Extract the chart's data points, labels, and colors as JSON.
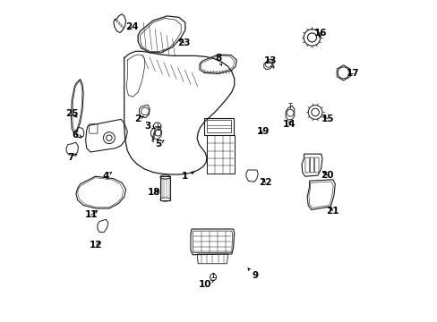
{
  "bg_color": "#ffffff",
  "line_color": "#1a1a1a",
  "label_color": "#000000",
  "font_size": 7.5,
  "arrow_color": "#000000",
  "fig_w": 4.89,
  "fig_h": 3.6,
  "dpi": 100,
  "part_labels": {
    "1": [
      0.395,
      0.548,
      0.43,
      0.53
    ],
    "2": [
      0.248,
      0.368,
      0.272,
      0.358
    ],
    "3": [
      0.278,
      0.39,
      0.308,
      0.4
    ],
    "4": [
      0.148,
      0.548,
      0.172,
      0.53
    ],
    "5": [
      0.31,
      0.448,
      0.33,
      0.435
    ],
    "6": [
      0.052,
      0.418,
      0.075,
      0.425
    ],
    "7": [
      0.038,
      0.488,
      0.06,
      0.478
    ],
    "8": [
      0.498,
      0.178,
      0.512,
      0.21
    ],
    "9": [
      0.612,
      0.858,
      0.585,
      0.828
    ],
    "10": [
      0.458,
      0.885,
      0.486,
      0.872
    ],
    "11": [
      0.102,
      0.668,
      0.128,
      0.65
    ],
    "12": [
      0.118,
      0.762,
      0.138,
      0.748
    ],
    "13": [
      0.66,
      0.188,
      0.672,
      0.212
    ],
    "14": [
      0.718,
      0.385,
      0.728,
      0.368
    ],
    "15": [
      0.838,
      0.368,
      0.818,
      0.358
    ],
    "16": [
      0.818,
      0.102,
      0.808,
      0.122
    ],
    "17": [
      0.918,
      0.228,
      0.895,
      0.23
    ],
    "18": [
      0.298,
      0.598,
      0.322,
      0.59
    ],
    "19": [
      0.638,
      0.408,
      0.618,
      0.415
    ],
    "20": [
      0.838,
      0.545,
      0.818,
      0.528
    ],
    "21": [
      0.855,
      0.655,
      0.838,
      0.64
    ],
    "22": [
      0.645,
      0.568,
      0.632,
      0.548
    ],
    "23": [
      0.392,
      0.132,
      0.368,
      0.118
    ],
    "24": [
      0.228,
      0.082,
      0.21,
      0.095
    ],
    "25": [
      0.042,
      0.352,
      0.065,
      0.368
    ]
  }
}
